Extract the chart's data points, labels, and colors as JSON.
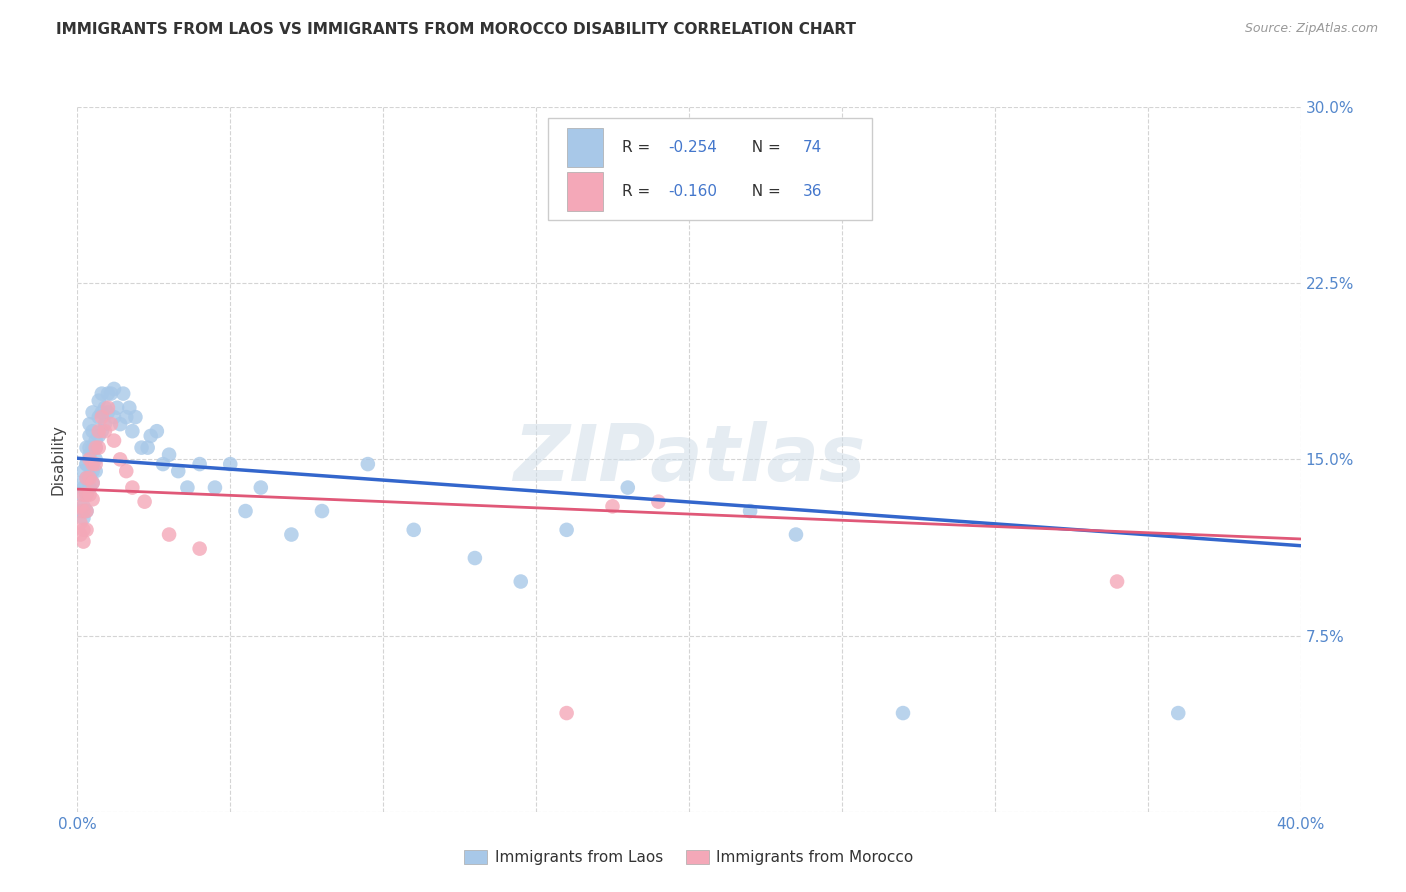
{
  "title": "IMMIGRANTS FROM LAOS VS IMMIGRANTS FROM MOROCCO DISABILITY CORRELATION CHART",
  "source": "Source: ZipAtlas.com",
  "ylabel": "Disability",
  "xlim": [
    0.0,
    0.4
  ],
  "ylim": [
    0.0,
    0.3
  ],
  "xticks": [
    0.0,
    0.05,
    0.1,
    0.15,
    0.2,
    0.25,
    0.3,
    0.35,
    0.4
  ],
  "xtick_labels_show": [
    "0.0%",
    "",
    "",
    "",
    "",
    "",
    "",
    "",
    "40.0%"
  ],
  "yticks": [
    0.0,
    0.075,
    0.15,
    0.225,
    0.3
  ],
  "ytick_labels": [
    "",
    "7.5%",
    "15.0%",
    "22.5%",
    "30.0%"
  ],
  "blue_color": "#a8c8e8",
  "pink_color": "#f4a8b8",
  "blue_line_color": "#3366cc",
  "pink_line_color": "#e05878",
  "legend1_label": "Immigrants from Laos",
  "legend2_label": "Immigrants from Morocco",
  "watermark": "ZIPatlas",
  "blue_R": -0.254,
  "blue_N": 74,
  "pink_R": -0.16,
  "pink_N": 36,
  "blue_x": [
    0.001,
    0.001,
    0.001,
    0.002,
    0.002,
    0.002,
    0.002,
    0.003,
    0.003,
    0.003,
    0.003,
    0.003,
    0.003,
    0.004,
    0.004,
    0.004,
    0.004,
    0.004,
    0.004,
    0.005,
    0.005,
    0.005,
    0.005,
    0.005,
    0.005,
    0.006,
    0.006,
    0.006,
    0.006,
    0.007,
    0.007,
    0.007,
    0.008,
    0.008,
    0.008,
    0.009,
    0.009,
    0.01,
    0.01,
    0.011,
    0.012,
    0.012,
    0.013,
    0.014,
    0.015,
    0.016,
    0.017,
    0.018,
    0.019,
    0.021,
    0.023,
    0.024,
    0.026,
    0.028,
    0.03,
    0.033,
    0.036,
    0.04,
    0.045,
    0.05,
    0.055,
    0.06,
    0.07,
    0.08,
    0.095,
    0.11,
    0.13,
    0.145,
    0.16,
    0.18,
    0.22,
    0.235,
    0.27,
    0.36
  ],
  "blue_y": [
    0.135,
    0.14,
    0.128,
    0.145,
    0.138,
    0.13,
    0.125,
    0.148,
    0.142,
    0.135,
    0.128,
    0.155,
    0.148,
    0.16,
    0.152,
    0.143,
    0.138,
    0.165,
    0.155,
    0.145,
    0.17,
    0.162,
    0.155,
    0.148,
    0.14,
    0.158,
    0.15,
    0.145,
    0.155,
    0.175,
    0.168,
    0.16,
    0.178,
    0.17,
    0.162,
    0.172,
    0.165,
    0.178,
    0.17,
    0.178,
    0.18,
    0.168,
    0.172,
    0.165,
    0.178,
    0.168,
    0.172,
    0.162,
    0.168,
    0.155,
    0.155,
    0.16,
    0.162,
    0.148,
    0.152,
    0.145,
    0.138,
    0.148,
    0.138,
    0.148,
    0.128,
    0.138,
    0.118,
    0.128,
    0.148,
    0.12,
    0.108,
    0.098,
    0.12,
    0.138,
    0.128,
    0.118,
    0.042,
    0.042
  ],
  "pink_x": [
    0.001,
    0.001,
    0.001,
    0.002,
    0.002,
    0.002,
    0.002,
    0.003,
    0.003,
    0.003,
    0.003,
    0.004,
    0.004,
    0.004,
    0.005,
    0.005,
    0.005,
    0.006,
    0.006,
    0.007,
    0.007,
    0.008,
    0.009,
    0.01,
    0.011,
    0.012,
    0.014,
    0.016,
    0.018,
    0.022,
    0.03,
    0.04,
    0.16,
    0.175,
    0.19,
    0.34
  ],
  "pink_y": [
    0.13,
    0.123,
    0.118,
    0.135,
    0.128,
    0.12,
    0.115,
    0.142,
    0.135,
    0.128,
    0.12,
    0.15,
    0.142,
    0.135,
    0.148,
    0.14,
    0.133,
    0.155,
    0.148,
    0.162,
    0.155,
    0.168,
    0.162,
    0.172,
    0.165,
    0.158,
    0.15,
    0.145,
    0.138,
    0.132,
    0.118,
    0.112,
    0.042,
    0.13,
    0.132,
    0.098
  ],
  "background_color": "#ffffff",
  "grid_color": "#d0d0d0"
}
